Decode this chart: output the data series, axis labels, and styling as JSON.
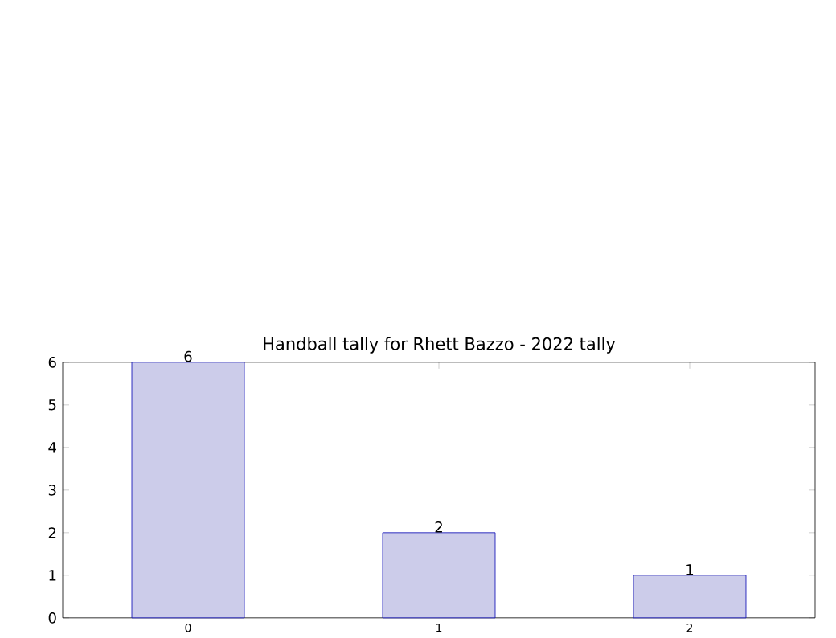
{
  "chart_data": {
    "type": "bar",
    "title": "Handball tally for Rhett Bazzo - 2022 tally",
    "categories": [
      "0",
      "1",
      "2"
    ],
    "values": [
      6,
      2,
      1
    ],
    "color": "#ccccea",
    "ylim": [
      0,
      6
    ],
    "yticks": [
      0,
      1,
      2,
      3,
      4,
      5,
      6
    ],
    "data_labels": true
  }
}
